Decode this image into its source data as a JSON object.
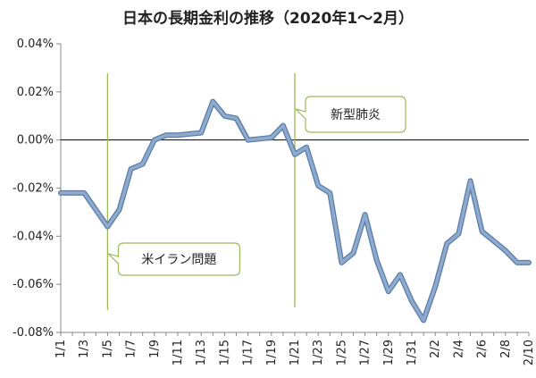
{
  "chart_data": {
    "type": "line",
    "title": "日本の長期金利の推移（2020年1〜2月）",
    "xlabel": "",
    "ylabel": "",
    "ylim": [
      -0.08,
      0.04
    ],
    "y_tick_values": [
      0.04,
      0.02,
      0.0,
      -0.02,
      -0.04,
      -0.06,
      -0.08
    ],
    "y_tick_labels": [
      "0.04%",
      "0.02%",
      "0.00%",
      "-0.02%",
      "-0.04%",
      "-0.06%",
      "-0.08%"
    ],
    "x_tick_labels": [
      "1/1",
      "1/3",
      "1/5",
      "1/7",
      "1/9",
      "1/11",
      "1/13",
      "1/15",
      "1/17",
      "1/19",
      "1/21",
      "1/23",
      "1/25",
      "1/27",
      "1/29",
      "1/31",
      "2/2",
      "2/4",
      "2/6",
      "2/8",
      "2/10"
    ],
    "grid": false,
    "reference_line_y": 0.0,
    "x": [
      "1/1",
      "1/2",
      "1/3",
      "1/4",
      "1/5",
      "1/6",
      "1/7",
      "1/8",
      "1/9",
      "1/10",
      "1/11",
      "1/12",
      "1/13",
      "1/14",
      "1/15",
      "1/16",
      "1/17",
      "1/18",
      "1/19",
      "1/20",
      "1/21",
      "1/22",
      "1/23",
      "1/24",
      "1/25",
      "1/26",
      "1/27",
      "1/28",
      "1/29",
      "1/30",
      "1/31",
      "2/1",
      "2/2",
      "2/3",
      "2/4",
      "2/5",
      "2/6",
      "2/7",
      "2/8",
      "2/9",
      "2/10"
    ],
    "series": [
      {
        "name": "",
        "color": "#8eaacc",
        "values": [
          -0.022,
          -0.022,
          -0.022,
          -0.029,
          -0.036,
          -0.029,
          -0.012,
          -0.01,
          0.0,
          0.002,
          0.002,
          0.0025,
          0.003,
          0.016,
          0.01,
          0.009,
          0.0,
          0.0005,
          0.001,
          0.006,
          -0.006,
          -0.003,
          -0.019,
          -0.022,
          -0.051,
          -0.047,
          -0.031,
          -0.05,
          -0.063,
          -0.056,
          -0.067,
          -0.075,
          -0.061,
          -0.043,
          -0.039,
          -0.017,
          -0.038,
          -0.042,
          -0.046,
          -0.051,
          -0.051
        ]
      }
    ],
    "annotations": [
      {
        "label": "米イラン問題",
        "x": "1/5"
      },
      {
        "label": "新型肺炎",
        "x": "1/21"
      }
    ]
  }
}
